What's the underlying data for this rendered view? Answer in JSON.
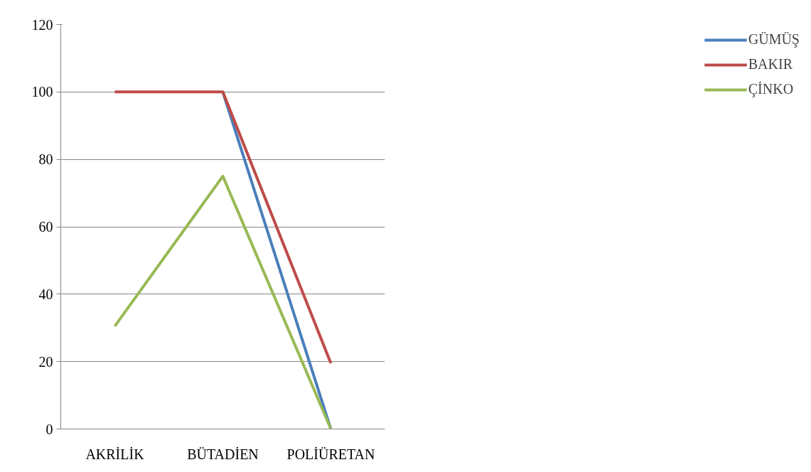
{
  "chart_data": {
    "type": "line",
    "categories": [
      "AKRİLİK",
      "BÜTADİEN",
      "POLİÜRETAN"
    ],
    "series": [
      {
        "name": "GÜMÜŞ",
        "color": "#4a7ebb",
        "values": [
          null,
          100,
          0
        ]
      },
      {
        "name": "BAKIR",
        "color": "#be4b48",
        "values": [
          100,
          100,
          19.5
        ]
      },
      {
        "name": "ÇİNKO",
        "color": "#98b954",
        "values": [
          30.5,
          75,
          0
        ]
      }
    ],
    "ylim": [
      0,
      120
    ],
    "yticks": [
      0,
      20,
      40,
      60,
      80,
      100,
      120
    ],
    "grid": "y",
    "legend": "right",
    "marker": "none",
    "line_style": "solid"
  }
}
